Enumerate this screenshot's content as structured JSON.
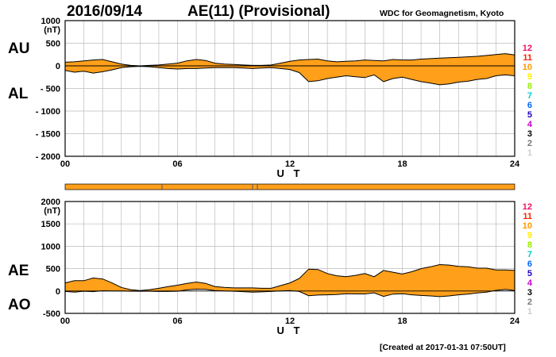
{
  "header": {
    "date": "2016/09/14",
    "title": "AE(11) (Provisional)",
    "source": "WDC for Geomagnetism, Kyoto"
  },
  "footer": {
    "created": "[Created at 2017-01-31 07:50UT]"
  },
  "colors": {
    "fill": "#ff9f1a",
    "line": "#000000",
    "grid": "#bbbbbb"
  },
  "legend_numbers": [
    {
      "label": "12",
      "color": "#ee1166"
    },
    {
      "label": "11",
      "color": "#ff2200"
    },
    {
      "label": "10",
      "color": "#ff9900"
    },
    {
      "label": "9",
      "color": "#ffee00"
    },
    {
      "label": "8",
      "color": "#99ee00"
    },
    {
      "label": "7",
      "color": "#00cccc"
    },
    {
      "label": "6",
      "color": "#0066ff"
    },
    {
      "label": "5",
      "color": "#2200bb"
    },
    {
      "label": "4",
      "color": "#cc00cc"
    },
    {
      "label": "3",
      "color": "#000000"
    },
    {
      "label": "2",
      "color": "#777777"
    },
    {
      "label": "1",
      "color": "#cccccc"
    }
  ],
  "chart_data": [
    {
      "type": "area",
      "upper_label": "AU",
      "lower_label": "AL",
      "unit": "(nT)",
      "xlabel": "U T",
      "x_ticks": [
        "00",
        "06",
        "12",
        "18",
        "24"
      ],
      "y_ticks": [
        "1000",
        "500",
        "0",
        "- 500",
        "- 1000",
        "- 1500",
        "- 2000"
      ],
      "ylim": [
        -2000,
        1000
      ],
      "xlim": [
        0,
        24
      ],
      "x": [
        0,
        0.5,
        1,
        1.5,
        2,
        2.5,
        3,
        3.5,
        4,
        4.5,
        5,
        5.5,
        6,
        6.5,
        7,
        7.5,
        8,
        8.5,
        9,
        9.5,
        10,
        10.5,
        11,
        11.5,
        12,
        12.5,
        13,
        13.5,
        14,
        14.5,
        15,
        15.5,
        16,
        16.5,
        17,
        17.5,
        18,
        18.5,
        19,
        19.5,
        20,
        20.5,
        21,
        21.5,
        22,
        22.5,
        23,
        23.5,
        24
      ],
      "series": [
        {
          "name": "AU",
          "values": [
            80,
            90,
            110,
            130,
            140,
            90,
            40,
            10,
            0,
            10,
            20,
            40,
            60,
            110,
            140,
            120,
            60,
            40,
            30,
            20,
            10,
            10,
            20,
            60,
            100,
            130,
            140,
            150,
            110,
            90,
            100,
            110,
            130,
            120,
            110,
            140,
            130,
            130,
            150,
            160,
            170,
            180,
            190,
            200,
            210,
            230,
            250,
            270,
            240
          ]
        },
        {
          "name": "AL",
          "values": [
            -100,
            -140,
            -120,
            -160,
            -130,
            -90,
            -40,
            -20,
            -10,
            -20,
            -40,
            -60,
            -70,
            -60,
            -60,
            -50,
            -40,
            -40,
            -40,
            -50,
            -60,
            -50,
            -40,
            -60,
            -80,
            -150,
            -350,
            -330,
            -280,
            -250,
            -220,
            -240,
            -260,
            -200,
            -350,
            -280,
            -250,
            -300,
            -350,
            -380,
            -420,
            -400,
            -360,
            -340,
            -300,
            -280,
            -220,
            -200,
            -220
          ]
        }
      ]
    },
    {
      "type": "area",
      "upper_label": "AE",
      "lower_label": "AO",
      "unit": "(nT)",
      "xlabel": "U T",
      "x_ticks": [
        "00",
        "06",
        "12",
        "18",
        "24"
      ],
      "y_ticks": [
        "2000",
        "1500",
        "1000",
        "500",
        "0",
        "-500"
      ],
      "ylim": [
        -500,
        2000
      ],
      "xlim": [
        0,
        24
      ],
      "x": [
        0,
        0.5,
        1,
        1.5,
        2,
        2.5,
        3,
        3.5,
        4,
        4.5,
        5,
        5.5,
        6,
        6.5,
        7,
        7.5,
        8,
        8.5,
        9,
        9.5,
        10,
        10.5,
        11,
        11.5,
        12,
        12.5,
        13,
        13.5,
        14,
        14.5,
        15,
        15.5,
        16,
        16.5,
        17,
        17.5,
        18,
        18.5,
        19,
        19.5,
        20,
        20.5,
        21,
        21.5,
        22,
        22.5,
        23,
        23.5,
        24
      ],
      "series": [
        {
          "name": "AE",
          "values": [
            180,
            230,
            230,
            290,
            270,
            180,
            80,
            30,
            10,
            30,
            60,
            100,
            130,
            170,
            200,
            170,
            100,
            80,
            70,
            70,
            70,
            60,
            60,
            120,
            180,
            280,
            490,
            480,
            390,
            340,
            320,
            350,
            390,
            320,
            460,
            420,
            380,
            430,
            500,
            540,
            590,
            580,
            550,
            540,
            510,
            510,
            470,
            470,
            460
          ]
        },
        {
          "name": "AO",
          "values": [
            -10,
            -25,
            -5,
            -15,
            5,
            0,
            0,
            -5,
            -5,
            -5,
            -10,
            -10,
            -5,
            25,
            40,
            35,
            10,
            0,
            -5,
            -15,
            -25,
            -20,
            -10,
            0,
            10,
            -10,
            -105,
            -90,
            -85,
            -80,
            -60,
            -65,
            -65,
            -40,
            -120,
            -70,
            -60,
            -85,
            -100,
            -110,
            -125,
            -110,
            -85,
            -70,
            -45,
            -25,
            15,
            35,
            10
          ]
        }
      ]
    }
  ]
}
